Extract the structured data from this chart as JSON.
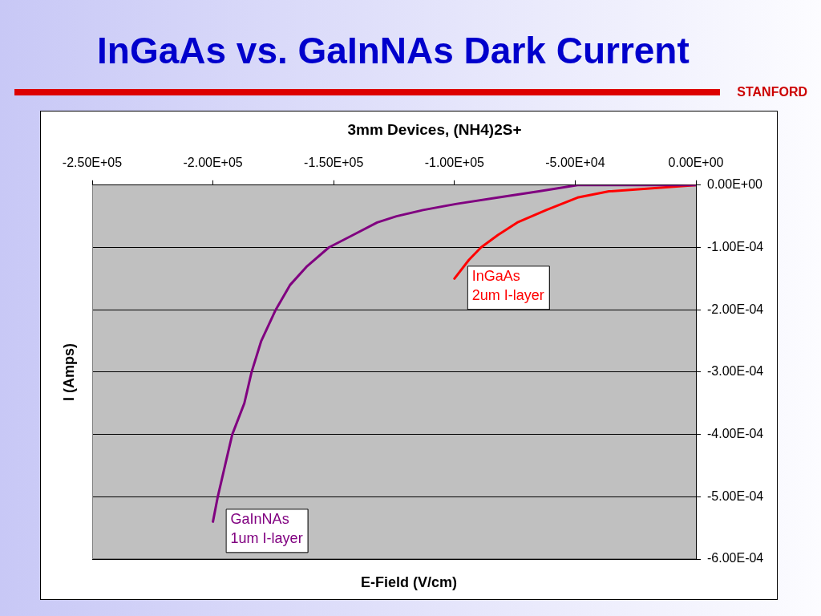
{
  "chart_data": {
    "type": "line",
    "title": "InGaAs vs. GaInNAs Dark Current",
    "subtitle": "3mm Devices, (NH4)2S+",
    "xlabel": "E-Field (V/cm)",
    "ylabel": "I (Amps)",
    "annotations": [
      "STANFORD"
    ],
    "xlim": [
      -250000,
      0
    ],
    "xticks": [
      {
        "value": -250000,
        "label": "-2.50E+05"
      },
      {
        "value": -200000,
        "label": "-2.00E+05"
      },
      {
        "value": -150000,
        "label": "-1.50E+05"
      },
      {
        "value": -100000,
        "label": "-1.00E+05"
      },
      {
        "value": -50000,
        "label": "-5.00E+04"
      },
      {
        "value": 0,
        "label": "0.00E+00"
      }
    ],
    "ylim": [
      -0.0006,
      0
    ],
    "yticks": [
      {
        "value": 0,
        "label": "0.00E+00"
      },
      {
        "value": -0.0001,
        "label": "-1.00E-04"
      },
      {
        "value": -0.0002,
        "label": "-2.00E-04"
      },
      {
        "value": -0.0003,
        "label": "-3.00E-04"
      },
      {
        "value": -0.0004,
        "label": "-4.00E-04"
      },
      {
        "value": -0.0005,
        "label": "-5.00E-04"
      },
      {
        "value": -0.0006,
        "label": "-6.00E-04"
      }
    ],
    "grid": "y",
    "marker": "none",
    "line_style": "solid",
    "series": [
      {
        "name": "GaInNAs 1um I-layer",
        "color": "#800080",
        "x": [
          -200000,
          -198000,
          -195000,
          -192000,
          -187000,
          -184000,
          -180000,
          -174000,
          -168000,
          -161000,
          -152000,
          -142000,
          -132000,
          -124000,
          -113000,
          -99000,
          -82000,
          -65000,
          -49000,
          -36000,
          0
        ],
        "values": [
          -0.00054,
          -0.0005,
          -0.00045,
          -0.0004,
          -0.00035,
          -0.0003,
          -0.00025,
          -0.0002,
          -0.00016,
          -0.00013,
          -0.0001,
          -8e-05,
          -6e-05,
          -5e-05,
          -4e-05,
          -3e-05,
          -2e-05,
          -1e-05,
          0,
          0,
          0
        ]
      },
      {
        "name": "InGaAs 2um I-layer",
        "color": "#ff0000",
        "x": [
          -100000,
          -94000,
          -89000,
          -82000,
          -74000,
          -62000,
          -49000,
          -36000,
          0
        ],
        "values": [
          -0.00015,
          -0.00012,
          -0.0001,
          -8e-05,
          -6e-05,
          -4e-05,
          -2e-05,
          -1e-05,
          0
        ]
      }
    ]
  }
}
